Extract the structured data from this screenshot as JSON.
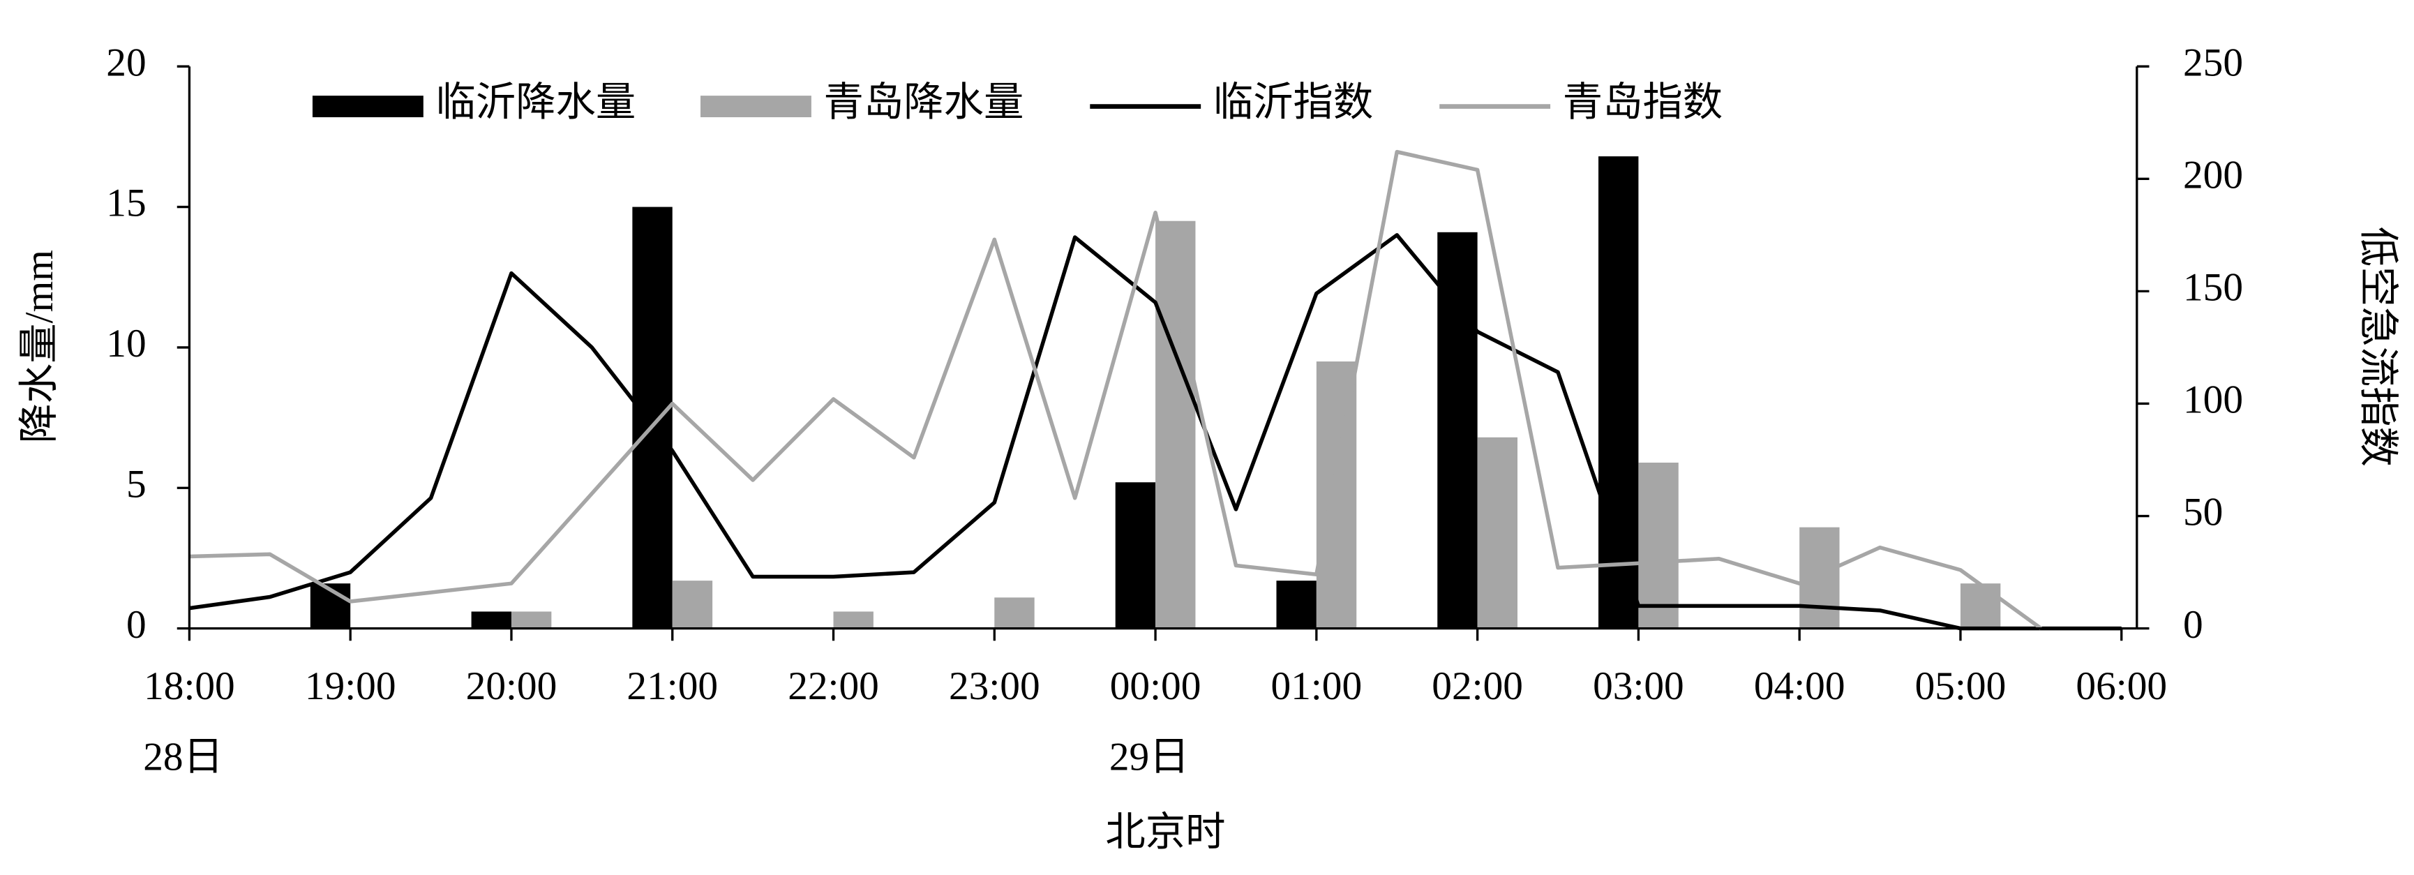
{
  "chart_data": {
    "type": "bar-line",
    "xlabel": "北京时",
    "ylabel": "降水量/mm",
    "y2label": "低空急流指数",
    "x": [
      0,
      0.5,
      1,
      1.5,
      2,
      2.5,
      3,
      3.5,
      4,
      4.5,
      5,
      5.5,
      6,
      6.5,
      7,
      7.5,
      8,
      8.5,
      9,
      9.5,
      10,
      10.5,
      11,
      11.5,
      12
    ],
    "xlim": [
      0,
      12
    ],
    "xticks": [
      {
        "value": 0,
        "label": "18:00"
      },
      {
        "value": 1,
        "label": "19:00"
      },
      {
        "value": 2,
        "label": "20:00"
      },
      {
        "value": 3,
        "label": "21:00"
      },
      {
        "value": 4,
        "label": "22:00"
      },
      {
        "value": 5,
        "label": "23:00"
      },
      {
        "value": 6,
        "label": "00:00"
      },
      {
        "value": 7,
        "label": "01:00"
      },
      {
        "value": 8,
        "label": "02:00"
      },
      {
        "value": 9,
        "label": "03:00"
      },
      {
        "value": 10,
        "label": "04:00"
      },
      {
        "value": 11,
        "label": "05:00"
      },
      {
        "value": 12,
        "label": "06:00"
      }
    ],
    "ylim": [
      0,
      20
    ],
    "yticks": [
      0,
      5,
      10,
      15,
      20
    ],
    "y2lim": [
      0,
      250
    ],
    "y2ticks": [
      0,
      50,
      100,
      150,
      200,
      250
    ],
    "annotations": [
      {
        "text": "28日",
        "x": 0
      },
      {
        "text": "29日",
        "x": 6
      }
    ],
    "series": [
      {
        "name": "临沂降水量",
        "kind": "bar",
        "color": "#000000",
        "values": [
          0,
          null,
          1.6,
          null,
          0.6,
          null,
          15,
          null,
          0,
          null,
          0,
          null,
          5.2,
          null,
          1.7,
          null,
          14.1,
          null,
          16.8,
          null,
          0,
          null,
          0,
          null,
          0
        ]
      },
      {
        "name": "青岛降水量",
        "kind": "bar",
        "color": "#a6a6a6",
        "values": [
          0,
          null,
          0,
          null,
          0.6,
          null,
          1.7,
          null,
          0.6,
          null,
          1.1,
          null,
          14.5,
          null,
          9.5,
          null,
          6.8,
          null,
          5.9,
          null,
          3.6,
          null,
          1.6,
          null,
          0
        ]
      },
      {
        "name": "临沂指数",
        "kind": "line",
        "axis": "y2",
        "color": "#000000",
        "values": [
          9,
          14,
          25,
          58,
          158,
          125,
          79,
          23,
          23,
          25,
          56,
          174,
          145,
          53,
          149,
          175,
          132,
          114,
          10,
          10,
          10,
          8,
          0,
          0,
          0
        ]
      },
      {
        "name": "青岛指数",
        "kind": "line",
        "axis": "y2",
        "color": "#a6a6a6",
        "values": [
          32,
          33,
          12,
          16,
          20,
          60,
          100,
          66,
          102,
          76,
          173,
          58,
          185,
          28,
          24,
          212,
          204,
          27,
          29,
          31,
          20,
          36,
          26,
          0,
          null
        ]
      }
    ]
  }
}
